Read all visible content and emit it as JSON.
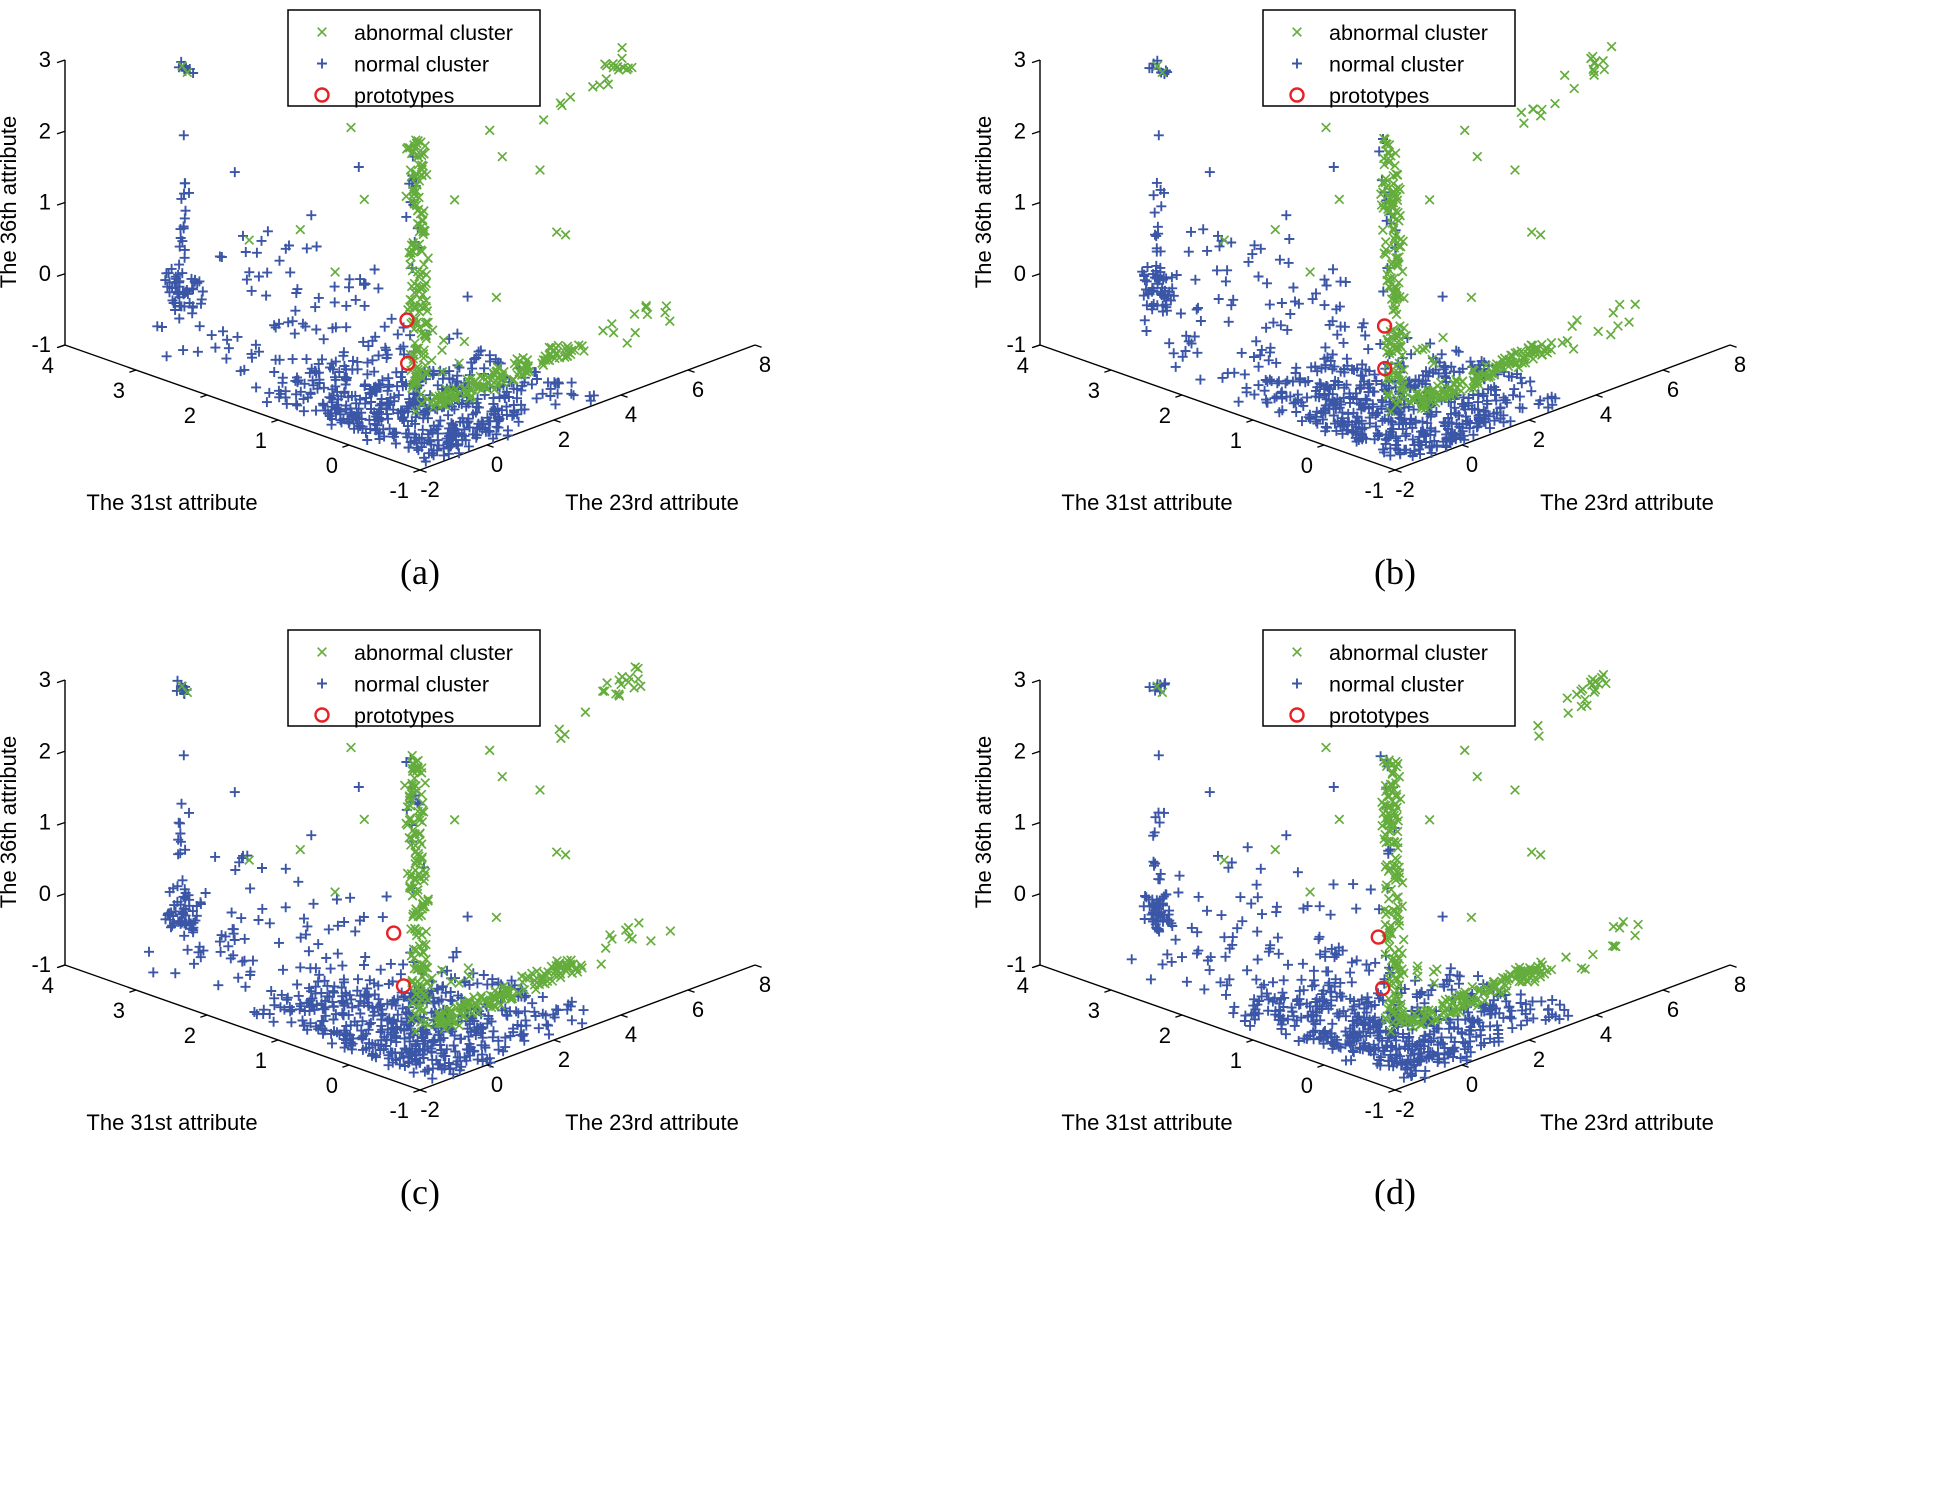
{
  "figure": {
    "captions": [
      "(a)",
      "(b)",
      "(c)",
      "(d)"
    ]
  },
  "legend": {
    "items": [
      {
        "label": "abnormal cluster",
        "symbol": "x",
        "color": "#64ad3c"
      },
      {
        "label": "normal cluster",
        "symbol": "plus",
        "color": "#3b56a7"
      },
      {
        "label": "prototypes",
        "symbol": "circle",
        "color": "#e62227"
      }
    ]
  },
  "chart_data": {
    "type": "scatter",
    "projection": "3d",
    "view": {
      "azimuth": -37.5,
      "elevation": 30
    },
    "x_axis": {
      "label": "The 23rd attribute",
      "range": [
        -2,
        8
      ],
      "ticks": [
        -2,
        0,
        2,
        4,
        6,
        8
      ]
    },
    "y_axis": {
      "label": "The 31st attribute",
      "range": [
        -1,
        4
      ],
      "ticks": [
        4,
        3,
        2,
        1,
        0,
        -1
      ]
    },
    "z_axis": {
      "label": "The 36th attribute",
      "range": [
        -1,
        3
      ],
      "ticks": [
        -1,
        0,
        1,
        2,
        3
      ]
    },
    "series": [
      {
        "name": "abnormal cluster",
        "symbol": "x",
        "color": "#64ad3c",
        "clusters": [
          {
            "shape": "line",
            "count": 150,
            "from": [
              0.35,
              0.1,
              -0.85
            ],
            "to": [
              0.5,
              0.25,
              2.8
            ],
            "jitter": [
              0.09,
              0.12,
              0.04
            ]
          },
          {
            "shape": "line",
            "count": 130,
            "from": [
              0.7,
              0.1,
              -0.95
            ],
            "to": [
              5.0,
              0.15,
              -0.88
            ],
            "jitter": [
              0.12,
              0.16,
              0.05
            ]
          },
          {
            "shape": "line",
            "count": 12,
            "from": [
              5.3,
              0.1,
              -0.9
            ],
            "to": [
              7.9,
              0.2,
              -0.82
            ],
            "jitter": [
              0.1,
              0.25,
              0.07
            ]
          },
          {
            "shape": "line",
            "count": 13,
            "from": [
              3.9,
              0.0,
              2.5
            ],
            "to": [
              7.0,
              0.1,
              2.95
            ],
            "jitter": [
              0.12,
              0.15,
              0.06
            ]
          },
          {
            "shape": "box",
            "count": 7,
            "x": [
              6.1,
              6.9
            ],
            "y": [
              0.0,
              0.3
            ],
            "z": [
              2.72,
              2.95
            ]
          },
          {
            "shape": "box",
            "count": 6,
            "x": [
              0.9,
              1.7
            ],
            "y": [
              0.0,
              0.5
            ],
            "z": [
              -0.6,
              -0.1
            ]
          }
        ],
        "points": [
          [
            2.3,
            2.0,
            2.0
          ],
          [
            2.2,
            0.0,
            2.68
          ],
          [
            3.7,
            0.0,
            1.86
          ],
          [
            4.2,
            0.0,
            0.9
          ],
          [
            2.4,
            0.0,
            0.3
          ],
          [
            0.0,
            2.35,
            0.7
          ],
          [
            0.0,
            1.63,
            1.1
          ],
          [
            1.0,
            1.2,
            1.5
          ],
          [
            0.8,
            0.3,
            2.2
          ],
          [
            2.0,
            0.4,
            1.6
          ],
          [
            0.2,
            0.1,
            -0.95
          ],
          [
            -0.2,
            3.2,
            2.88
          ],
          [
            -0.15,
            3.15,
            2.8
          ],
          [
            1.4,
            1.8,
            0.2
          ],
          [
            3.0,
            0.2,
            2.1
          ],
          [
            5.1,
            0.3,
            0.6
          ],
          [
            1.2,
            0.2,
            -0.3
          ],
          [
            1.5,
            0.1,
            -0.5
          ]
        ]
      },
      {
        "name": "normal cluster",
        "symbol": "plus",
        "color": "#3b56a7",
        "clusters": [
          {
            "shape": "box",
            "count": 300,
            "x": [
              -1.6,
              1.4
            ],
            "y": [
              -1.0,
              1.6
            ],
            "z": [
              -1.0,
              -0.8
            ]
          },
          {
            "shape": "box",
            "count": 110,
            "x": [
              1.2,
              3.6
            ],
            "y": [
              -0.9,
              0.8
            ],
            "z": [
              -1.0,
              -0.85
            ]
          },
          {
            "shape": "box",
            "count": 90,
            "x": [
              -1.3,
              0.6
            ],
            "y": [
              -1.0,
              0.6
            ],
            "z": [
              -1.0,
              -0.86
            ]
          },
          {
            "shape": "line",
            "count": 18,
            "from": [
              -0.2,
              3.2,
              -0.6
            ],
            "to": [
              -0.1,
              3.25,
              1.25
            ],
            "jitter": [
              0.04,
              0.06,
              0.05
            ]
          },
          {
            "shape": "box",
            "count": 45,
            "x": [
              -0.32,
              0.02
            ],
            "y": [
              3.0,
              3.4
            ],
            "z": [
              -0.55,
              -0.02
            ]
          },
          {
            "shape": "box",
            "count": 9,
            "x": [
              -0.26,
              -0.06
            ],
            "y": [
              3.08,
              3.3
            ],
            "z": [
              2.78,
              2.95
            ]
          },
          {
            "shape": "box",
            "count": 55,
            "x": [
              -0.8,
              1.6
            ],
            "y": [
              0.8,
              3.0
            ],
            "z": [
              -0.75,
              0.6
            ]
          },
          {
            "shape": "line",
            "count": 12,
            "from": [
              0.3,
              0.15,
              1.3
            ],
            "to": [
              0.45,
              0.3,
              2.8
            ],
            "jitter": [
              0.07,
              0.1,
              0.06
            ]
          },
          {
            "shape": "box",
            "count": 25,
            "x": [
              -1.5,
              0.5
            ],
            "y": [
              1.5,
              3.2
            ],
            "z": [
              -0.92,
              -0.55
            ]
          },
          {
            "shape": "box",
            "count": 25,
            "x": [
              0.5,
              2.2
            ],
            "y": [
              0.3,
              1.4
            ],
            "z": [
              -0.85,
              -0.3
            ]
          }
        ],
        "points": [
          [
            -0.15,
            3.2,
            1.9
          ],
          [
            -0.1,
            3.15,
            1.1
          ],
          [
            0.2,
            0.9,
            2.2
          ],
          [
            1.8,
            0.9,
            0.5
          ],
          [
            -0.5,
            2.2,
            0.9
          ],
          [
            0.1,
            2.6,
            1.55
          ],
          [
            1.2,
            2.4,
            0.35
          ],
          [
            2.6,
            0.5,
            0.1
          ],
          [
            0.9,
            1.9,
            1.05
          ]
        ]
      },
      {
        "name": "prototypes",
        "symbol": "circle",
        "color": "#e62227",
        "per_panel": true
      }
    ],
    "panels": [
      {
        "caption": "(a)",
        "seed": 11,
        "prototypes": [
          [
            0.58,
            0.4,
            0.16
          ],
          [
            0.6,
            0.4,
            -0.45
          ]
        ]
      },
      {
        "caption": "(b)",
        "seed": 22,
        "prototypes": [
          [
            0.55,
            0.35,
            0.1
          ],
          [
            0.62,
            0.38,
            -0.52
          ]
        ]
      },
      {
        "caption": "(c)",
        "seed": 33,
        "prototypes": [
          [
            0.5,
            0.55,
            0.22
          ],
          [
            0.58,
            0.45,
            -0.5
          ]
        ]
      },
      {
        "caption": "(d)",
        "seed": 44,
        "prototypes": [
          [
            0.68,
            0.5,
            0.15
          ],
          [
            0.6,
            0.4,
            -0.52
          ]
        ]
      }
    ]
  }
}
